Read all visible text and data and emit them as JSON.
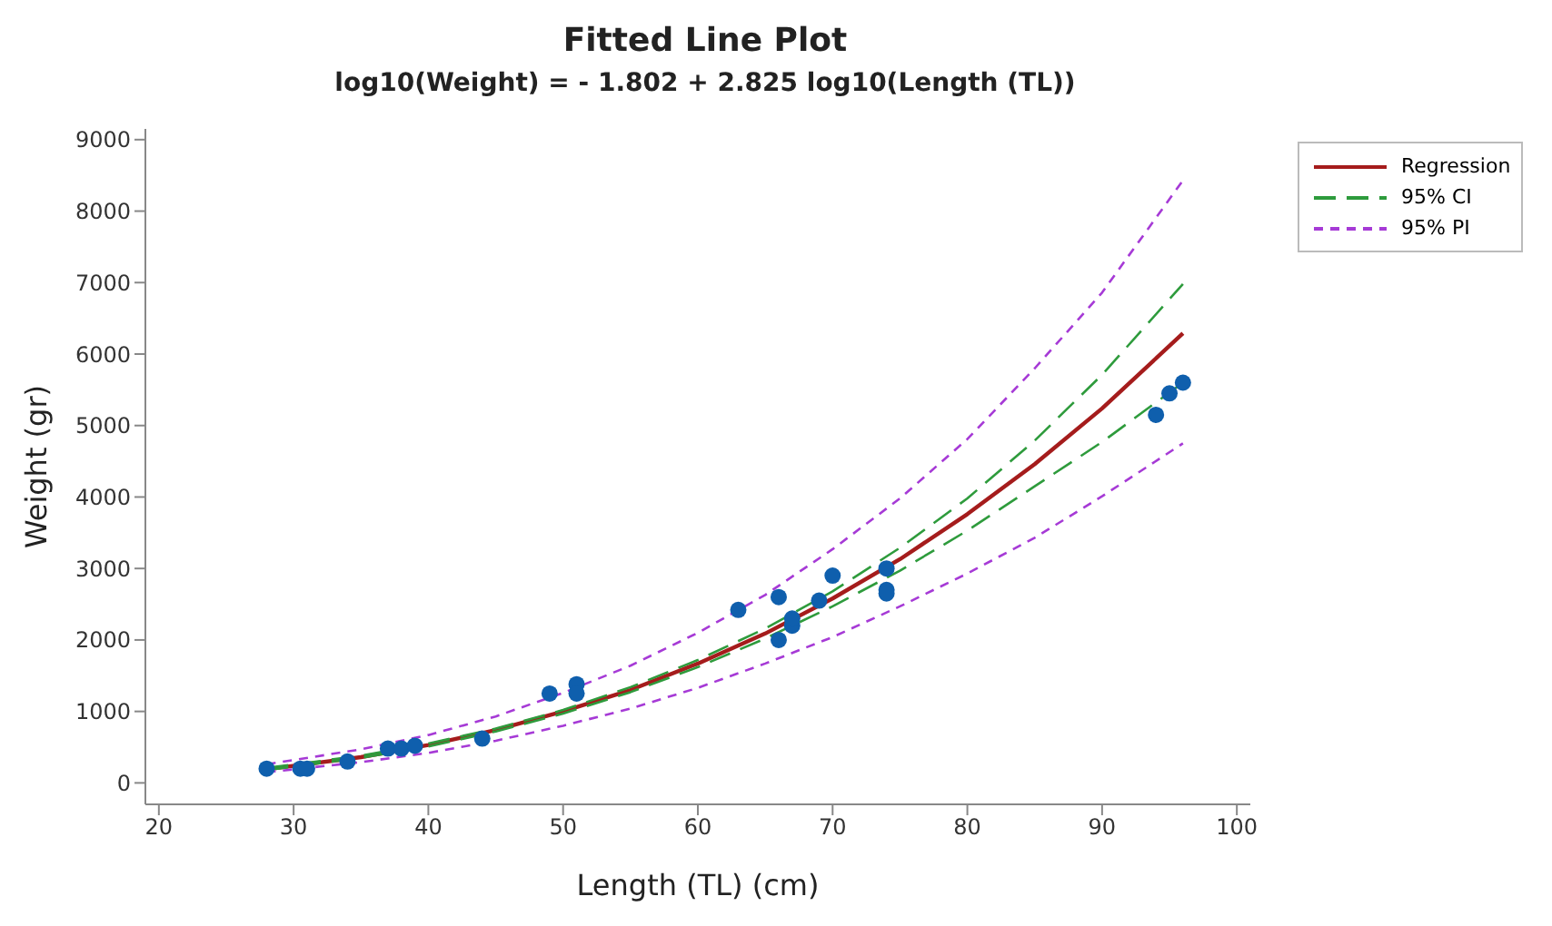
{
  "chart_data": {
    "type": "line",
    "title": "Fitted Line Plot",
    "subtitle": "log10(Weight) = - 1.802 + 2.825 log10(Length (TL))",
    "xlabel": "Length (TL) (cm)",
    "ylabel": "Weight (gr)",
    "xlim": [
      19,
      101
    ],
    "xticks": [
      20,
      30,
      40,
      50,
      60,
      70,
      80,
      90,
      100
    ],
    "ylim": [
      -300,
      9150
    ],
    "yticks": [
      0,
      1000,
      2000,
      3000,
      4000,
      5000,
      6000,
      7000,
      8000,
      9000
    ],
    "grid": false,
    "legend": "top right",
    "series": [
      {
        "type": "scatter",
        "color": "#0f5fad",
        "marker": "circle",
        "x": [
          28,
          30.5,
          31,
          34,
          37,
          38,
          39,
          44,
          49,
          51,
          51,
          63,
          66,
          66,
          67,
          67,
          69,
          70,
          74,
          74,
          74,
          94,
          95,
          96
        ],
        "values": [
          200,
          200,
          200,
          300,
          480,
          480,
          520,
          620,
          1250,
          1380,
          1250,
          2420,
          2600,
          2000,
          2200,
          2300,
          2550,
          2900,
          3000,
          2700,
          2650,
          5150,
          5450,
          5600
        ]
      },
      {
        "name": "Regression",
        "type": "line",
        "color": "#a51c1c",
        "line_style": "solid",
        "marker": "none",
        "x": [
          28,
          35,
          40,
          45,
          50,
          55,
          60,
          65,
          70,
          75,
          80,
          85,
          90,
          96
        ],
        "values": [
          190,
          360,
          530,
          740,
          1000,
          1300,
          1670,
          2090,
          2580,
          3130,
          3760,
          4460,
          5240,
          6290
        ]
      },
      {
        "name": "95% CI",
        "type": "line",
        "color": "#2e9b3c",
        "line_style": "dashed",
        "marker": "none",
        "x": [
          28,
          35,
          40,
          45,
          50,
          55,
          60,
          65,
          70,
          75,
          80,
          85,
          90,
          96
        ],
        "values": [
          210,
          380,
          550,
          760,
          1020,
          1340,
          1720,
          2160,
          2680,
          3290,
          3980,
          4790,
          5710,
          6980
        ]
      },
      {
        "type": "line",
        "color": "#2e9b3c",
        "line_style": "dashed",
        "marker": "none",
        "x": [
          28,
          35,
          40,
          45,
          50,
          55,
          60,
          65,
          70,
          75,
          80,
          85,
          90,
          96
        ],
        "values": [
          180,
          350,
          510,
          720,
          970,
          1270,
          1620,
          2020,
          2470,
          2970,
          3530,
          4150,
          4770,
          5600
        ]
      },
      {
        "name": "95% PI",
        "type": "line",
        "color": "#a63ad6",
        "line_style": "dotted",
        "marker": "none",
        "x": [
          28,
          35,
          40,
          45,
          50,
          55,
          60,
          65,
          70,
          75,
          80,
          85,
          90,
          96
        ],
        "values": [
          260,
          470,
          670,
          930,
          1260,
          1640,
          2100,
          2630,
          3270,
          3980,
          4810,
          5800,
          6860,
          8430
        ]
      },
      {
        "type": "line",
        "color": "#a63ad6",
        "line_style": "dotted",
        "marker": "none",
        "x": [
          28,
          35,
          40,
          45,
          50,
          55,
          60,
          65,
          70,
          75,
          80,
          85,
          90,
          96
        ],
        "values": [
          150,
          290,
          420,
          590,
          800,
          1040,
          1330,
          1670,
          2040,
          2470,
          2930,
          3430,
          4010,
          4750
        ]
      }
    ]
  }
}
